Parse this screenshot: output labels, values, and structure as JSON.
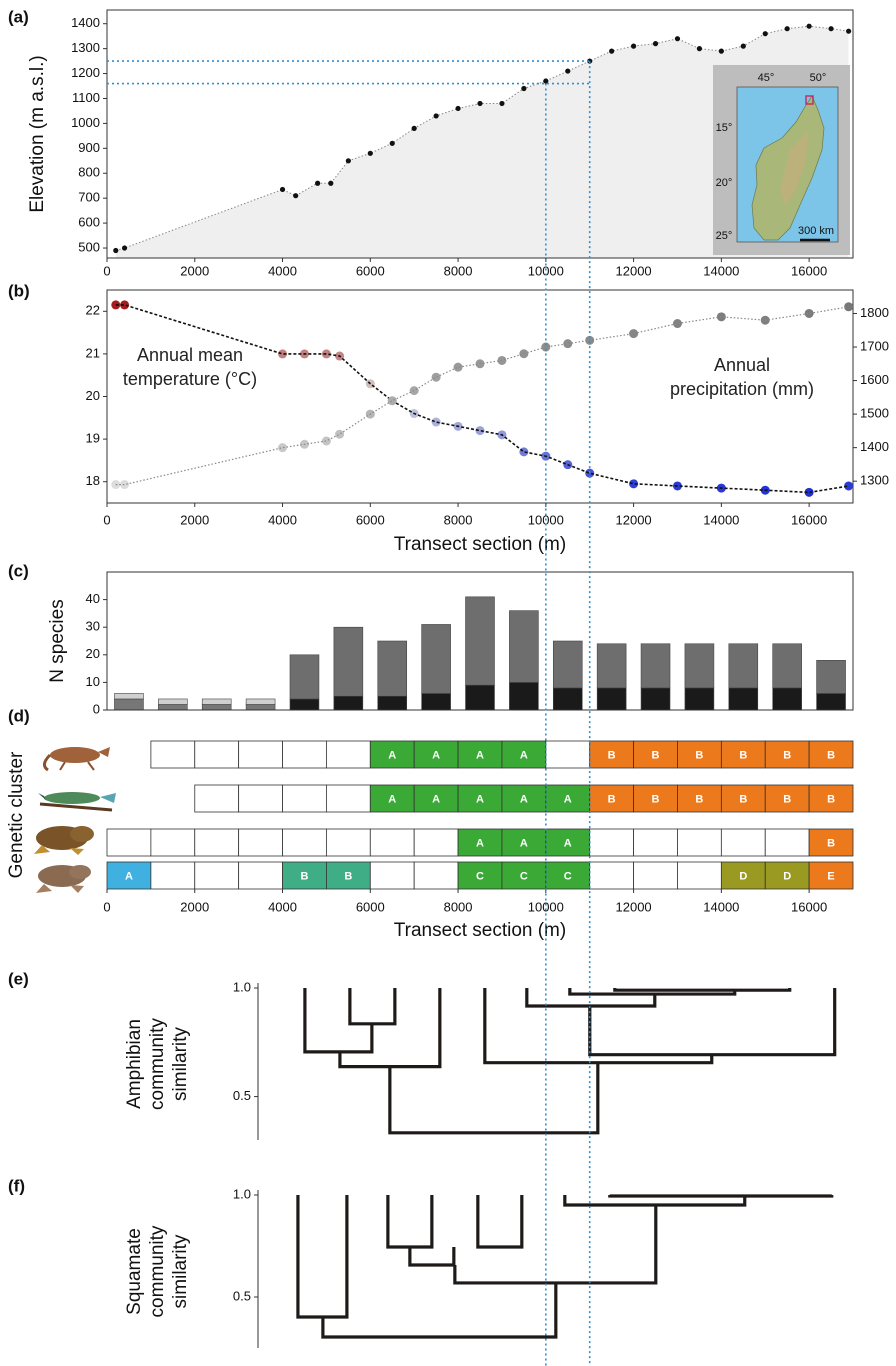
{
  "chart_data": [
    {
      "type": "scatter",
      "label": "(a)",
      "ylabel": "Elevation (m a.s.l.)",
      "x": [
        200,
        400,
        4000,
        4300,
        4800,
        5100,
        5500,
        6000,
        6500,
        7000,
        7500,
        8000,
        8500,
        9000,
        9500,
        10000,
        10500,
        11000,
        11500,
        12000,
        12500,
        13000,
        13500,
        14000,
        14500,
        15000,
        15500,
        16000,
        16500,
        16900
      ],
      "values": [
        490,
        500,
        735,
        710,
        760,
        760,
        850,
        880,
        920,
        980,
        1030,
        1060,
        1080,
        1080,
        1140,
        1170,
        1210,
        1250,
        1290,
        1310,
        1320,
        1340,
        1300,
        1290,
        1310,
        1360,
        1380,
        1390,
        1380,
        1370
      ],
      "color": "#111111",
      "fill": "#efefef",
      "trend_color": "#888888",
      "xlim": [
        0,
        17000
      ],
      "xticks": [
        0,
        2000,
        4000,
        6000,
        8000,
        10000,
        12000,
        14000,
        16000
      ],
      "ylim": [
        460,
        1455
      ],
      "yticks": [
        500,
        600,
        700,
        800,
        900,
        1000,
        1100,
        1200,
        1300,
        1400
      ],
      "hlines": [
        1250,
        1160
      ],
      "vlines": [
        10000,
        11000
      ],
      "line_color": "#2f8fd0",
      "inset": {
        "xticks": [
          "45°",
          "50°"
        ],
        "yticks": [
          "15°",
          "20°",
          "25°"
        ],
        "scale": "300 km"
      }
    },
    {
      "type": "dual-scatter",
      "label": "(b)",
      "xlabel": "Transect section (m)",
      "x": [
        200,
        400,
        4000,
        4500,
        5000,
        5300,
        6000,
        6500,
        7000,
        7500,
        8000,
        8500,
        9000,
        9500,
        10000,
        10500,
        11000,
        12000,
        13000,
        14000,
        15000,
        16000,
        16900
      ],
      "series": [
        {
          "annotation": [
            "Annual mean",
            "temperature (°C)"
          ],
          "color_scale": [
            "#a51d1d",
            "#dcdcdc",
            "#1f2fd6"
          ],
          "line_color": "#111111",
          "values": [
            22.15,
            22.15,
            21.0,
            21.0,
            21.0,
            20.95,
            20.3,
            19.9,
            19.6,
            19.4,
            19.3,
            19.2,
            19.1,
            18.7,
            18.6,
            18.4,
            18.2,
            17.95,
            17.9,
            17.85,
            17.8,
            17.75,
            17.9
          ]
        },
        {
          "annotation": [
            "Annual",
            "precipitation (mm)"
          ],
          "axis": "y2",
          "color_scale": [
            "#dddddd",
            "#777777"
          ],
          "line_color": "#888888",
          "values": [
            1290,
            1290,
            1400,
            1410,
            1420,
            1440,
            1500,
            1540,
            1570,
            1610,
            1640,
            1650,
            1660,
            1680,
            1700,
            1710,
            1720,
            1740,
            1770,
            1790,
            1780,
            1800,
            1820
          ]
        }
      ],
      "xlim": [
        0,
        17000
      ],
      "xticks": [
        0,
        2000,
        4000,
        6000,
        8000,
        10000,
        12000,
        14000,
        16000
      ],
      "ylim": [
        17.5,
        22.5
      ],
      "yticks": [
        18,
        19,
        20,
        21,
        22
      ],
      "y2lim": [
        1235,
        1870
      ],
      "y2ticks": [
        1300,
        1400,
        1500,
        1600,
        1700,
        1800
      ]
    },
    {
      "type": "bar",
      "label": "(c)",
      "ylabel": "N species",
      "x": [
        500,
        1500,
        2500,
        3500,
        4500,
        5500,
        6500,
        7500,
        8500,
        9500,
        10500,
        11500,
        12500,
        13500,
        14500,
        15500,
        16500
      ],
      "series": [
        {
          "values": [
            4,
            2,
            2,
            2,
            4,
            5,
            5,
            6,
            9,
            10,
            8,
            8,
            8,
            8,
            8,
            8,
            6
          ],
          "colors": [
            "#777777",
            "#777777",
            "#777777",
            "#777777",
            "#1a1a1a",
            "#1a1a1a",
            "#1a1a1a",
            "#1a1a1a",
            "#1a1a1a",
            "#1a1a1a",
            "#1a1a1a",
            "#1a1a1a",
            "#1a1a1a",
            "#1a1a1a",
            "#1a1a1a",
            "#1a1a1a",
            "#1a1a1a"
          ]
        },
        {
          "values": [
            2,
            2,
            2,
            2,
            16,
            25,
            20,
            25,
            32,
            26,
            17,
            16,
            16,
            16,
            16,
            16,
            12
          ],
          "colors": [
            "#d0d0d0",
            "#d0d0d0",
            "#d0d0d0",
            "#d0d0d0",
            "#6e6e6e",
            "#6e6e6e",
            "#6e6e6e",
            "#6e6e6e",
            "#6e6e6e",
            "#6e6e6e",
            "#6e6e6e",
            "#6e6e6e",
            "#6e6e6e",
            "#6e6e6e",
            "#6e6e6e",
            "#6e6e6e",
            "#6e6e6e"
          ]
        }
      ],
      "xlim": [
        0,
        17000
      ],
      "ylim": [
        0,
        50
      ],
      "yticks": [
        0,
        10,
        20,
        30,
        40
      ]
    },
    {
      "type": "grid",
      "label": "(d)",
      "ylabel": "Genetic cluster",
      "xlabel": "Transect section (m)",
      "xlim": [
        0,
        17000
      ],
      "xticks": [
        0,
        2000,
        4000,
        6000,
        8000,
        10000,
        12000,
        14000,
        16000
      ],
      "rows": [
        {
          "start": 1000,
          "cells": [
            null,
            null,
            null,
            null,
            null,
            "A",
            "A",
            "A",
            "A",
            null,
            "B",
            "B",
            "B",
            "B",
            "B",
            "B"
          ],
          "colors": [
            null,
            null,
            null,
            null,
            null,
            "#3aa935",
            "#3aa935",
            "#3aa935",
            "#3aa935",
            null,
            "#ec7a1c",
            "#ec7a1c",
            "#ec7a1c",
            "#ec7a1c",
            "#ec7a1c",
            "#ec7a1c"
          ]
        },
        {
          "start": 2000,
          "cells": [
            null,
            null,
            null,
            null,
            "A",
            "A",
            "A",
            "A",
            "A",
            "B",
            "B",
            "B",
            "B",
            "B",
            "B"
          ],
          "colors": [
            null,
            null,
            null,
            null,
            "#3aa935",
            "#3aa935",
            "#3aa935",
            "#3aa935",
            "#3aa935",
            "#ec7a1c",
            "#ec7a1c",
            "#ec7a1c",
            "#ec7a1c",
            "#ec7a1c",
            "#ec7a1c"
          ]
        },
        {
          "start": 0,
          "cells": [
            null,
            null,
            null,
            null,
            null,
            null,
            null,
            null,
            "A",
            "A",
            "A",
            null,
            null,
            null,
            null,
            null,
            "B"
          ],
          "colors": [
            null,
            null,
            null,
            null,
            null,
            null,
            null,
            null,
            "#3aa935",
            "#3aa935",
            "#3aa935",
            null,
            null,
            null,
            null,
            null,
            "#ec7a1c"
          ]
        },
        {
          "start": 0,
          "cells": [
            "A",
            null,
            null,
            null,
            "B",
            "B",
            null,
            null,
            "C",
            "C",
            "C",
            null,
            null,
            null,
            "D",
            "D",
            "E"
          ],
          "colors": [
            "#3fb0e0",
            null,
            null,
            null,
            "#3fae86",
            "#3fae86",
            null,
            null,
            "#3aa935",
            "#3aa935",
            "#3aa935",
            null,
            null,
            null,
            "#9a9a22",
            "#9a9a22",
            "#ec7a1c"
          ]
        }
      ]
    },
    {
      "type": "dendrogram",
      "label": "(e)",
      "ylabel": [
        "Amphibian",
        "community",
        "similarity"
      ],
      "xlim": [
        0,
        17000
      ],
      "ylim": [
        0.3,
        1.0
      ],
      "yticks": [
        {
          "value": 1.0,
          "label": "1.0"
        },
        0.5
      ],
      "links": [
        {
          "x": [
            5535,
            6560
          ],
          "from": [
            1.0,
            1.0
          ],
          "at": 0.835
        },
        {
          "x": [
            4510,
            6036
          ],
          "from": [
            1.0,
            0.835
          ],
          "at": 0.706
        },
        {
          "x": [
            5308,
            7585
          ],
          "from": [
            0.706,
            1.0
          ],
          "at": 0.638
        },
        {
          "x": [
            11572,
            15558
          ],
          "from": [
            1.0,
            1.0
          ],
          "at": 0.99
        },
        {
          "x": [
            10547,
            14305
          ],
          "from": [
            1.0,
            0.99
          ],
          "at": 0.972
        },
        {
          "x": [
            9567,
            12483
          ],
          "from": [
            1.0,
            0.972
          ],
          "at": 0.917
        },
        {
          "x": [
            11002,
            16583
          ],
          "from": [
            0.917,
            1.0
          ],
          "at": 0.693
        },
        {
          "x": [
            8610,
            13781
          ],
          "from": [
            1.0,
            0.693
          ],
          "at": 0.656
        },
        {
          "x": [
            6446,
            11185
          ],
          "from": [
            0.638,
            0.656
          ],
          "at": 0.333
        }
      ]
    },
    {
      "type": "dendrogram",
      "label": "(f)",
      "ylabel": [
        "Squamate",
        "community",
        "similarity"
      ],
      "xlim": [
        0,
        17000
      ],
      "ylim": [
        0.25,
        1.0
      ],
      "yticks": [
        {
          "value": 1.0,
          "label": "1.0"
        },
        0.5
      ],
      "links": [
        {
          "x": [
            4351,
            5467
          ],
          "from": [
            1.0,
            1.0
          ],
          "at": 0.402
        },
        {
          "x": [
            6401,
            7403
          ],
          "from": [
            1.0,
            1.0
          ],
          "at": 0.745
        },
        {
          "x": [
            8451,
            9453
          ],
          "from": [
            1.0,
            1.0
          ],
          "at": 0.745
        },
        {
          "x": [
            6902,
            7904
          ],
          "from": [
            0.745,
            0.745
          ],
          "at": 0.657
        },
        {
          "x": [
            11458,
            16515
          ],
          "from": [
            1.0,
            1.0
          ],
          "at": 0.995
        },
        {
          "x": [
            10433,
            14533
          ],
          "from": [
            1.0,
            0.995
          ],
          "at": 0.951
        },
        {
          "x": [
            7927,
            12506
          ],
          "from": [
            0.657,
            0.951
          ],
          "at": 0.569
        },
        {
          "x": [
            4920,
            10228
          ],
          "from": [
            0.402,
            0.569
          ],
          "at": 0.304
        }
      ]
    }
  ]
}
